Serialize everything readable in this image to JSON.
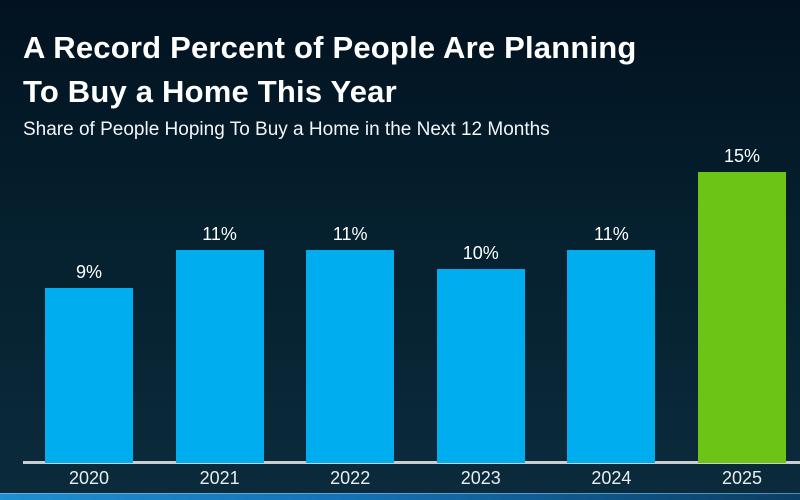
{
  "header": {
    "title_line1": "A Record Percent of People Are Planning",
    "title_line2": "To Buy a Home This Year",
    "subtitle": "Share of People Hoping To Buy a Home in the Next 12 Months"
  },
  "chart_data": {
    "type": "bar",
    "title": "A Record Percent of People Are Planning To Buy a Home This Year",
    "subtitle": "Share of People Hoping To Buy a Home in the Next 12 Months",
    "categories": [
      "2020",
      "2021",
      "2022",
      "2023",
      "2024",
      "2025"
    ],
    "values": [
      9,
      11,
      11,
      10,
      11,
      15
    ],
    "value_labels": [
      "9%",
      "11%",
      "11%",
      "10%",
      "11%",
      "15%"
    ],
    "bar_colors": [
      "#00ADEE",
      "#00ADEE",
      "#00ADEE",
      "#00ADEE",
      "#00ADEE",
      "#6CC516"
    ],
    "highlight_index": 5,
    "highlight_color": "#6CC516",
    "default_bar_color": "#00ADEE",
    "xlabel": "",
    "ylabel": "",
    "ylim": [
      0,
      16
    ],
    "grid": false,
    "legend": null,
    "data_labels_shown": true,
    "axis_line_color": "#C9CED3",
    "value_label_color": "#FFFFFF",
    "tick_label_color": "#E7EDF1",
    "background_top": "#021220",
    "background_bottom": "#0B2B3C"
  },
  "footer": {
    "strip_color_left": "#1F8FD0",
    "strip_color_right": "#0B3E63"
  }
}
